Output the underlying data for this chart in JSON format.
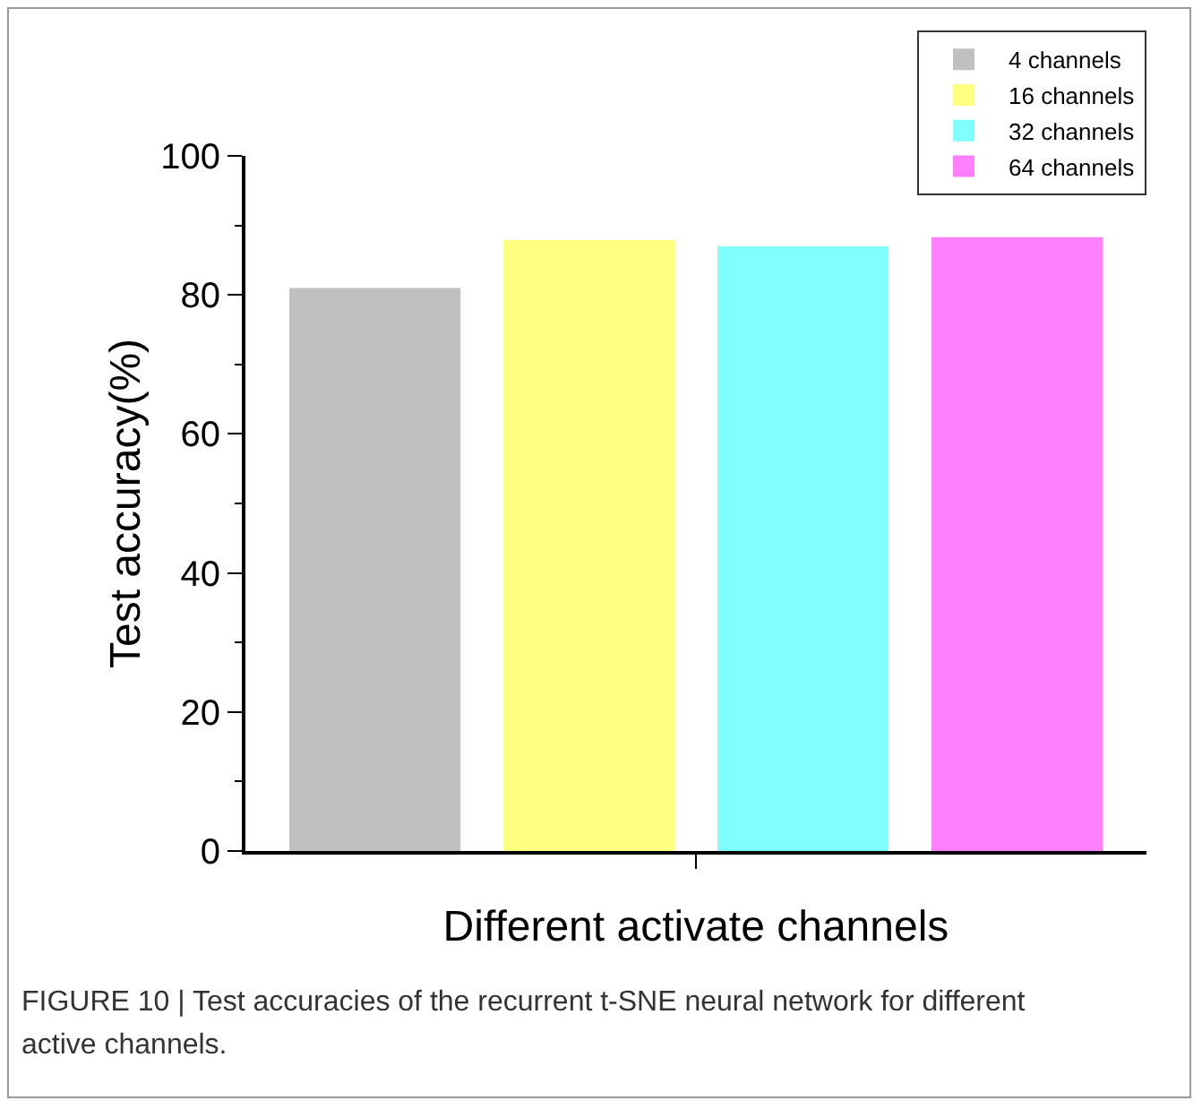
{
  "chart_data": {
    "type": "bar",
    "xlabel": "Different activate channels",
    "ylabel": "Test accuracy(%)",
    "categories": [
      null
    ],
    "series": [
      {
        "name": "4 channels",
        "color": "#c0c0c0",
        "values": [
          81.0
        ]
      },
      {
        "name": "16 channels",
        "color": "#ffff80",
        "values": [
          87.9
        ]
      },
      {
        "name": "32 channels",
        "color": "#80ffff",
        "values": [
          87.0
        ]
      },
      {
        "name": "64 channels",
        "color": "#ff80ff",
        "values": [
          88.3
        ]
      }
    ],
    "ylim": [
      0,
      100
    ],
    "yticks": [
      0,
      20,
      40,
      60,
      80,
      100
    ],
    "grid": false,
    "legend": "top right",
    "annotations": [
      "FIGURE 10 | Test accuracies of the recurrent t-SNE neural network for different active channels."
    ]
  }
}
